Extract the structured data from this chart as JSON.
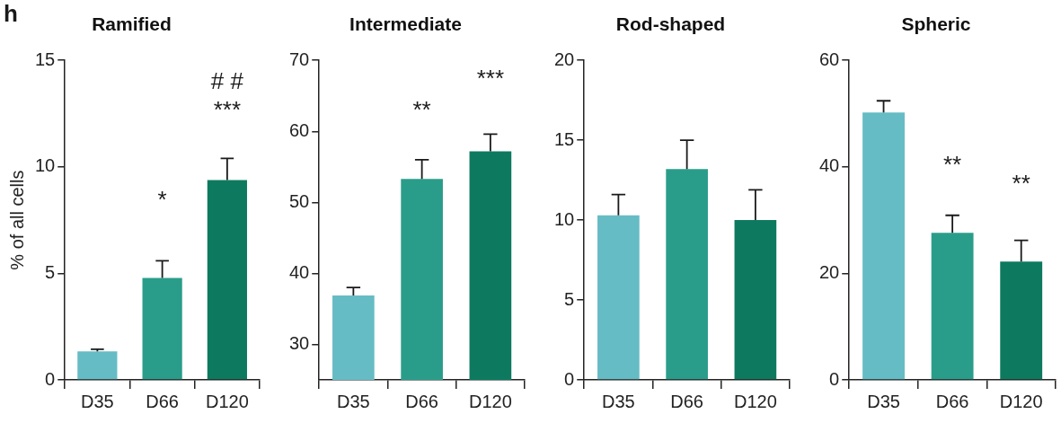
{
  "chart_data": [
    {
      "type": "bar",
      "title": "Ramified",
      "ylabel": "% of all cells",
      "categories": [
        "D35",
        "D66",
        "D120"
      ],
      "values": [
        1.34,
        4.79,
        9.38
      ],
      "errors": [
        [
          1.34,
          1.44
        ],
        [
          4.79,
          5.59
        ],
        [
          9.38,
          10.4
        ]
      ],
      "colors": [
        "#66bcc4",
        "#2a9d8a",
        "#0d7a5f"
      ],
      "ylim": [
        0,
        15
      ],
      "yticks": [
        0,
        5,
        10,
        15
      ],
      "grid": false,
      "legend": false,
      "annotations": [
        "h",
        "*",
        "***",
        "# #"
      ]
    },
    {
      "type": "bar",
      "title": "Intermediate",
      "categories": [
        "D35",
        "D66",
        "D120"
      ],
      "values": [
        36.9,
        53.3,
        57.2
      ],
      "errors": [
        [
          36.9,
          38.0
        ],
        [
          53.3,
          56.0
        ],
        [
          57.2,
          59.6
        ]
      ],
      "colors": [
        "#66bcc4",
        "#2a9d8a",
        "#0d7a5f"
      ],
      "ylim": [
        25,
        70
      ],
      "yticks": [
        30,
        40,
        50,
        60,
        70
      ],
      "grid": false,
      "legend": false,
      "annotations": [
        "**",
        "***"
      ]
    },
    {
      "type": "bar",
      "title": "Rod-shaped",
      "categories": [
        "D35",
        "D66",
        "D120"
      ],
      "values": [
        10.3,
        13.2,
        10.0
      ],
      "errors": [
        [
          10.3,
          11.6
        ],
        [
          13.2,
          15.0
        ],
        [
          10.0,
          11.9
        ]
      ],
      "colors": [
        "#66bcc4",
        "#2a9d8a",
        "#0d7a5f"
      ],
      "ylim": [
        0,
        20
      ],
      "yticks": [
        0,
        5,
        10,
        15,
        20
      ],
      "grid": false,
      "legend": false
    },
    {
      "type": "bar",
      "title": "Spheric",
      "categories": [
        "D35",
        "D66",
        "D120"
      ],
      "values": [
        50.2,
        27.6,
        22.2
      ],
      "errors": [
        [
          50.2,
          52.4
        ],
        [
          27.6,
          30.9
        ],
        [
          22.2,
          26.2
        ]
      ],
      "colors": [
        "#66bcc4",
        "#2a9d8a",
        "#0d7a5f"
      ],
      "ylim": [
        0,
        60
      ],
      "yticks": [
        0,
        20,
        40,
        60
      ],
      "grid": false,
      "legend": false,
      "annotations": [
        "**",
        "**"
      ]
    }
  ]
}
